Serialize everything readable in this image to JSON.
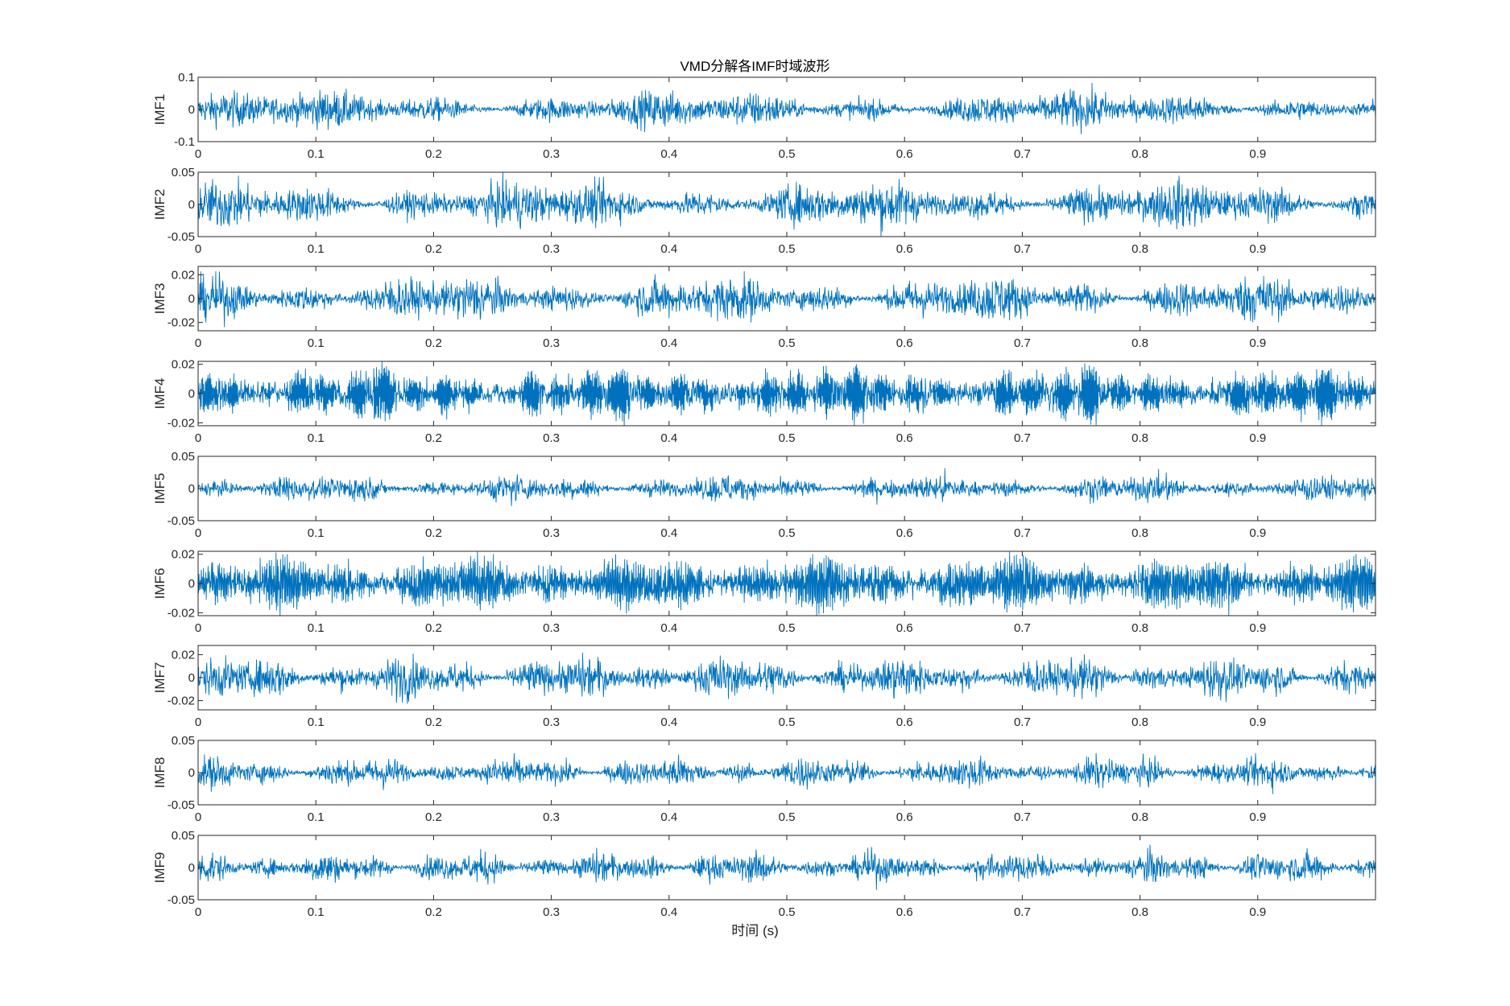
{
  "chart_data": {
    "type": "line",
    "title": "VMD分解各IMF时域波形",
    "xlabel": "时间 (s)",
    "xlim": [
      0,
      1
    ],
    "x_ticks": [
      0,
      0.1,
      0.2,
      0.3,
      0.4,
      0.5,
      0.6,
      0.7,
      0.8,
      0.9
    ],
    "x_tick_labels": [
      "0",
      "0.1",
      "0.2",
      "0.3",
      "0.4",
      "0.5",
      "0.6",
      "0.7",
      "0.8",
      "0.9"
    ],
    "line_color": "#0072BD",
    "grid": false,
    "legend": "none",
    "series": [
      {
        "name": "IMF1",
        "ylabel": "IMF1",
        "ylim": [
          -0.1,
          0.1
        ],
        "yticks": [
          -0.1,
          0,
          0.1
        ],
        "ytick_labels": [
          "-0.1",
          "0",
          "0.1"
        ],
        "amplitude": 0.08
      },
      {
        "name": "IMF2",
        "ylabel": "IMF2",
        "ylim": [
          -0.05,
          0.05
        ],
        "yticks": [
          -0.05,
          0,
          0.05
        ],
        "ytick_labels": [
          "-0.05",
          "0",
          "0.05"
        ],
        "amplitude": 0.05
      },
      {
        "name": "IMF3",
        "ylabel": "IMF3",
        "ylim": [
          -0.027,
          0.027
        ],
        "yticks": [
          -0.02,
          0,
          0.02
        ],
        "ytick_labels": [
          "-0.02",
          "0",
          "0.02"
        ],
        "amplitude": 0.027
      },
      {
        "name": "IMF4",
        "ylabel": "IMF4",
        "ylim": [
          -0.022,
          0.022
        ],
        "yticks": [
          -0.02,
          0,
          0.02
        ],
        "ytick_labels": [
          "-0.02",
          "0",
          "0.02"
        ],
        "amplitude": 0.022
      },
      {
        "name": "IMF5",
        "ylabel": "IMF5",
        "ylim": [
          -0.05,
          0.05
        ],
        "yticks": [
          -0.05,
          0,
          0.05
        ],
        "ytick_labels": [
          "-0.05",
          "0",
          "0.05"
        ],
        "amplitude": 0.03
      },
      {
        "name": "IMF6",
        "ylabel": "IMF6",
        "ylim": [
          -0.022,
          0.022
        ],
        "yticks": [
          -0.02,
          0,
          0.02
        ],
        "ytick_labels": [
          "-0.02",
          "0",
          "0.02"
        ],
        "amplitude": 0.022
      },
      {
        "name": "IMF7",
        "ylabel": "IMF7",
        "ylim": [
          -0.028,
          0.028
        ],
        "yticks": [
          -0.02,
          0,
          0.02
        ],
        "ytick_labels": [
          "-0.02",
          "0",
          "0.02"
        ],
        "amplitude": 0.026
      },
      {
        "name": "IMF8",
        "ylabel": "IMF8",
        "ylim": [
          -0.05,
          0.05
        ],
        "yticks": [
          -0.05,
          0,
          0.05
        ],
        "ytick_labels": [
          "-0.05",
          "0",
          "0.05"
        ],
        "amplitude": 0.035
      },
      {
        "name": "IMF9",
        "ylabel": "IMF9",
        "ylim": [
          -0.05,
          0.05
        ],
        "yticks": [
          -0.05,
          0,
          0.05
        ],
        "ytick_labels": [
          "-0.05",
          "0",
          "0.05"
        ],
        "amplitude": 0.035
      }
    ]
  }
}
